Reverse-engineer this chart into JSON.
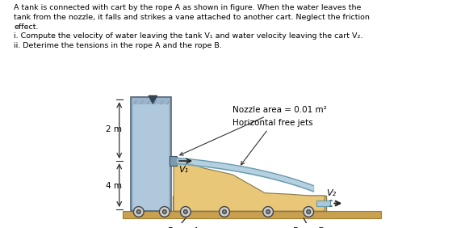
{
  "bg_color": "#ffffff",
  "text_color": "#000000",
  "tank_color": "#9ab4cc",
  "tank_inner_color": "#b0c8dc",
  "vane_fill_color": "#e8c878",
  "ground_color": "#c8a050",
  "ground_edge": "#a08030",
  "wheel_outer": "#cccccc",
  "wheel_inner": "#888888",
  "water_flow_color": "#a8c8dc",
  "nozzle_color": "#7a9ab0",
  "exit_water_color": "#a8c8dc",
  "nozzle_annotation": "Nozzle area = 0.01 m²",
  "jet_annotation": "Horizontal free jets",
  "label_2m": "2 m",
  "label_4m": "4 m",
  "label_v1": "V₁",
  "label_v2": "V₂",
  "label_rope_a": "Rope A",
  "label_rope_b": "Rope B",
  "title_text": "A tank is connected with cart by the rope A as shown in figure. When the water leaves the\ntank from the nozzle, it falls and strikes a vane attached to another cart. Neglect the friction\neffect.\ni. Compute the velocity of water leaving the tank V₁ and water velocity leaving the cart V₂.\nii. Deterime the tensions in the rope A and the rope B."
}
